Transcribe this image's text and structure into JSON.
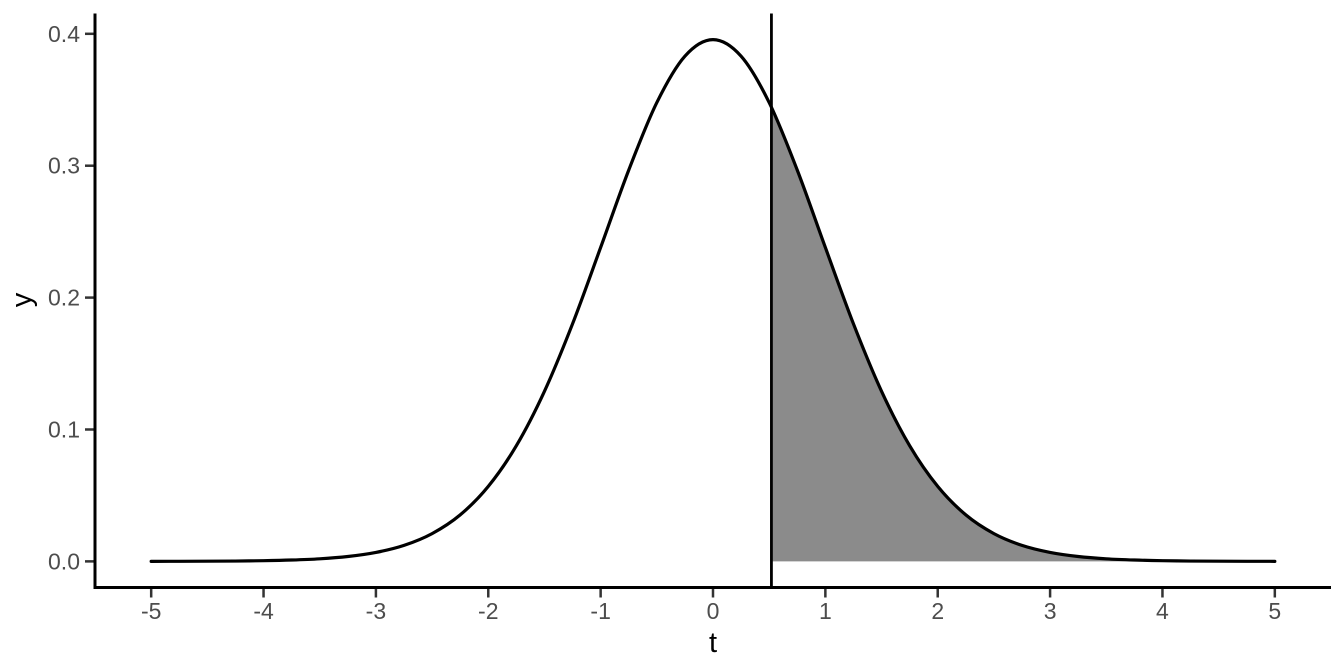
{
  "chart_data": {
    "type": "area",
    "title": "",
    "xlabel": "t",
    "ylabel": "y",
    "distribution": "t-distribution probability density (df ~ 30), shaded right tail beyond vertical line",
    "xlim": [
      -5.5,
      5.5
    ],
    "ylim": [
      -0.0198,
      0.4154
    ],
    "grid": false,
    "legend": "none",
    "x_ticks": [
      -5,
      -4,
      -3,
      -2,
      -1,
      0,
      1,
      2,
      3,
      4,
      5
    ],
    "x_tick_labels": [
      "-5",
      "-4",
      "-3",
      "-2",
      "-1",
      "0",
      "1",
      "2",
      "3",
      "4",
      "5"
    ],
    "y_ticks": [
      0.0,
      0.1,
      0.2,
      0.3,
      0.4
    ],
    "y_tick_labels": [
      "0.0",
      "0.1",
      "0.2",
      "0.3",
      "0.4"
    ],
    "curve": {
      "x": [
        -5,
        -4.75,
        -4.5,
        -4.25,
        -4,
        -3.75,
        -3.5,
        -3.25,
        -3,
        -2.75,
        -2.5,
        -2.25,
        -2,
        -1.75,
        -1.5,
        -1.25,
        -1,
        -0.75,
        -0.5,
        -0.25,
        0,
        0.25,
        0.5,
        0.75,
        1,
        1.25,
        1.5,
        1.75,
        2,
        2.25,
        2.5,
        2.75,
        3,
        3.25,
        3.5,
        3.75,
        4,
        4.25,
        4.5,
        4.75,
        5
      ],
      "y": [
        3.3e-05,
        6.6e-05,
        0.000133,
        0.000265,
        0.000524,
        0.001025,
        0.001959,
        0.003688,
        0.006783,
        0.01213,
        0.021067,
        0.035258,
        0.05685,
        0.087716,
        0.12897,
        0.18013,
        0.238,
        0.29664,
        0.34788,
        0.38307,
        0.39562,
        0.38307,
        0.34788,
        0.29664,
        0.238,
        0.18013,
        0.12897,
        0.087716,
        0.05685,
        0.035258,
        0.021067,
        0.01213,
        0.006783,
        0.003688,
        0.001959,
        0.001025,
        0.000524,
        0.000265,
        0.000133,
        6.6e-05,
        3.3e-05
      ],
      "peak_y": 0.39562
    },
    "vline_x": 0.52,
    "vline_y_at_curve": 0.3442,
    "shade_from": 0.52,
    "shade_to": 5,
    "colors": {
      "curve": "#000000",
      "vline": "#000000",
      "area_fill": "#8b8b8b",
      "axis_line": "#000000",
      "tick": "#333333",
      "tick_label": "#4d4d4d",
      "axis_title": "#000000",
      "background": "#ffffff"
    }
  }
}
